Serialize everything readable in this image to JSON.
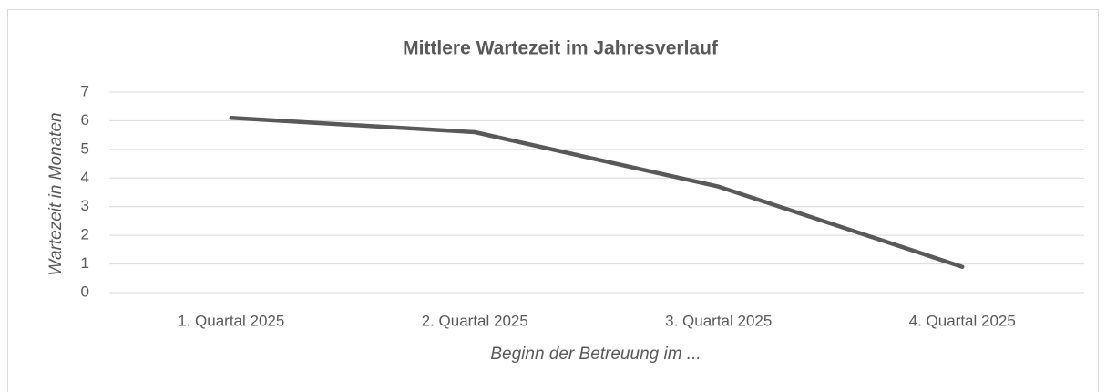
{
  "chart_data": {
    "type": "line",
    "title": "Mittlere Wartezeit im Jahresverlauf",
    "x_label": "Beginn der Betreuung im ...",
    "y_label": "Wartezeit in Monaten",
    "categories": [
      "1. Quartal 2025",
      "2. Quartal 2025",
      "3. Quartal 2025",
      "4. Quartal 2025"
    ],
    "values": [
      6.1,
      5.6,
      3.7,
      0.9
    ],
    "color": "#595959",
    "ylim": [
      0,
      7
    ],
    "yticks": [
      0,
      1,
      2,
      3,
      4,
      5,
      6,
      7
    ],
    "grid": true
  }
}
